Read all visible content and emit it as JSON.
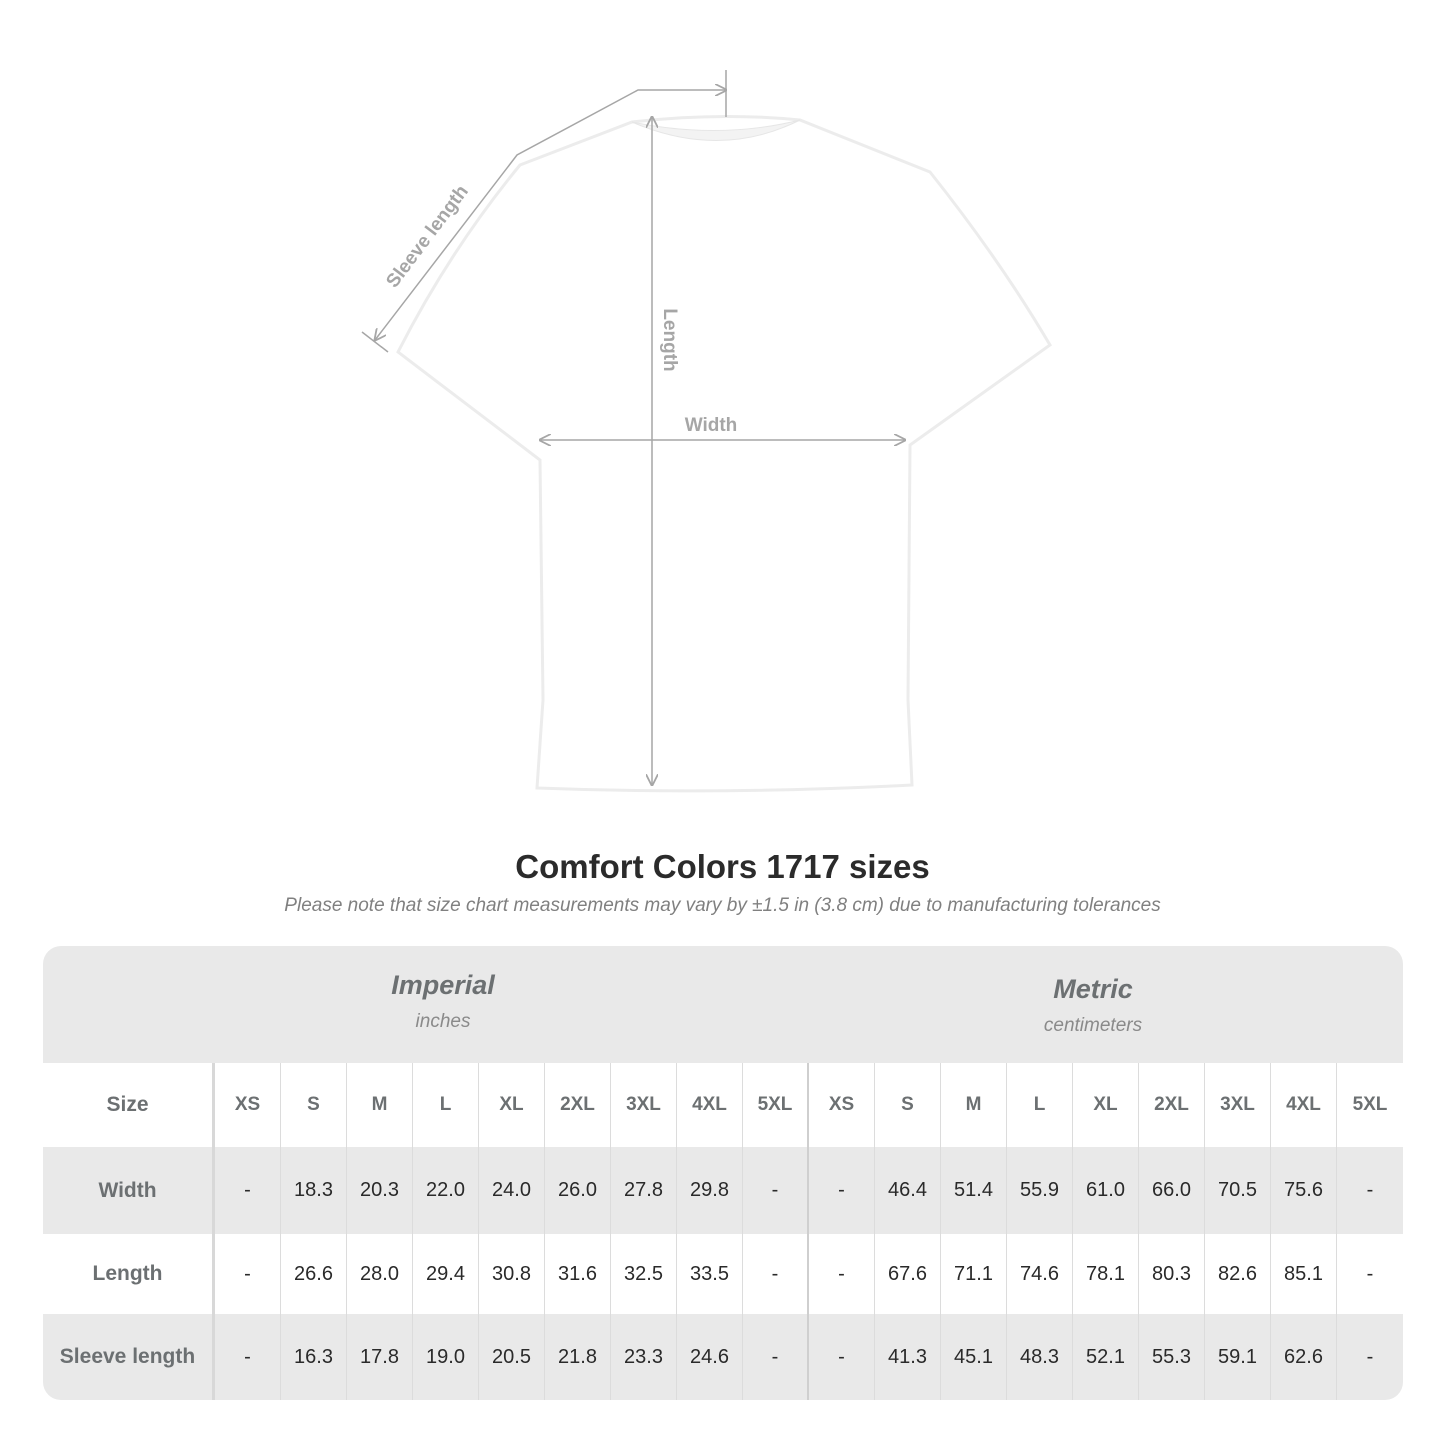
{
  "diagram": {
    "labels": {
      "sleeve": "Sleeve length",
      "length": "Length",
      "width": "Width"
    },
    "colors": {
      "annotation": "#a6a6a6",
      "shirt": "#ffffff"
    }
  },
  "title": "Comfort Colors 1717 sizes",
  "note": "Please note that size chart measurements may vary by ±1.5 in (3.8 cm) due to manufacturing tolerances",
  "table": {
    "imperial": {
      "name": "Imperial",
      "unit": "inches"
    },
    "metric": {
      "name": "Metric",
      "unit": "centimeters"
    },
    "size_label": "Size",
    "sizes": [
      "XS",
      "S",
      "M",
      "L",
      "XL",
      "2XL",
      "3XL",
      "4XL",
      "5XL",
      "XS",
      "S",
      "M",
      "L",
      "XL",
      "2XL",
      "3XL",
      "4XL",
      "5XL"
    ],
    "rows": [
      {
        "label": "Width",
        "values": [
          "-",
          "18.3",
          "20.3",
          "22.0",
          "24.0",
          "26.0",
          "27.8",
          "29.8",
          "-",
          "-",
          "46.4",
          "51.4",
          "55.9",
          "61.0",
          "66.0",
          "70.5",
          "75.6",
          "-"
        ]
      },
      {
        "label": "Length",
        "values": [
          "-",
          "26.6",
          "28.0",
          "29.4",
          "30.8",
          "31.6",
          "32.5",
          "33.5",
          "-",
          "-",
          "67.6",
          "71.1",
          "74.6",
          "78.1",
          "80.3",
          "82.6",
          "85.1",
          "-"
        ]
      },
      {
        "label": "Sleeve length",
        "values": [
          "-",
          "16.3",
          "17.8",
          "19.0",
          "20.5",
          "21.8",
          "23.3",
          "24.6",
          "-",
          "-",
          "41.3",
          "45.1",
          "48.3",
          "52.1",
          "55.3",
          "59.1",
          "62.6",
          "-"
        ]
      }
    ]
  }
}
